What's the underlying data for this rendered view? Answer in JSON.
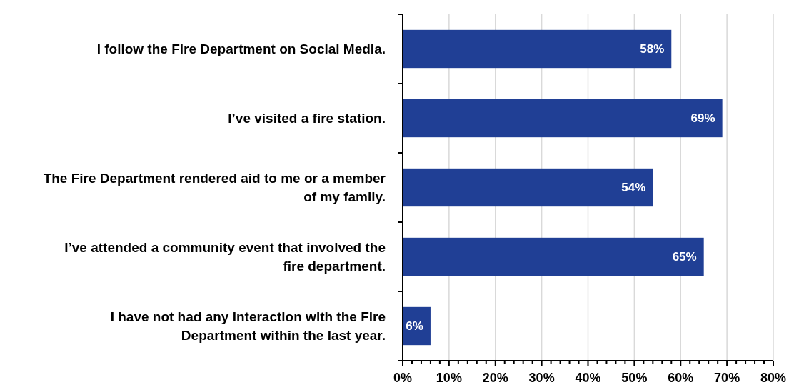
{
  "chart_data": {
    "type": "bar",
    "orientation": "horizontal",
    "categories": [
      "I follow the Fire Department on Social Media.",
      "I’ve visited a fire station.",
      "The Fire Department rendered aid to me or a member of my family.",
      "I’ve attended a community event that involved the fire department.",
      "I have not had any interaction with the Fire Department within the last year."
    ],
    "values": [
      58,
      69,
      54,
      65,
      6
    ],
    "value_labels": [
      "58%",
      "69%",
      "54%",
      "65%",
      "6%"
    ],
    "color": "#203f95",
    "xlim": [
      0,
      80
    ],
    "xticks": [
      {
        "value": 0,
        "label": "0%"
      },
      {
        "value": 2,
        "label": null
      },
      {
        "value": 4,
        "label": null
      },
      {
        "value": 6,
        "label": null
      },
      {
        "value": 8,
        "label": null
      },
      {
        "value": 10,
        "label": "10%"
      },
      {
        "value": 12,
        "label": null
      },
      {
        "value": 14,
        "label": null
      },
      {
        "value": 16,
        "label": null
      },
      {
        "value": 18,
        "label": null
      },
      {
        "value": 20,
        "label": "20%"
      },
      {
        "value": 22,
        "label": null
      },
      {
        "value": 24,
        "label": null
      },
      {
        "value": 26,
        "label": null
      },
      {
        "value": 28,
        "label": null
      },
      {
        "value": 30,
        "label": "30%"
      },
      {
        "value": 32,
        "label": null
      },
      {
        "value": 34,
        "label": null
      },
      {
        "value": 36,
        "label": null
      },
      {
        "value": 38,
        "label": null
      },
      {
        "value": 40,
        "label": "40%"
      },
      {
        "value": 42,
        "label": null
      },
      {
        "value": 44,
        "label": null
      },
      {
        "value": 46,
        "label": null
      },
      {
        "value": 48,
        "label": null
      },
      {
        "value": 50,
        "label": "50%"
      },
      {
        "value": 52,
        "label": null
      },
      {
        "value": 54,
        "label": null
      },
      {
        "value": 56,
        "label": null
      },
      {
        "value": 58,
        "label": null
      },
      {
        "value": 60,
        "label": "60%"
      },
      {
        "value": 62,
        "label": null
      },
      {
        "value": 64,
        "label": null
      },
      {
        "value": 66,
        "label": null
      },
      {
        "value": 68,
        "label": null
      },
      {
        "value": 70,
        "label": "70%"
      },
      {
        "value": 72,
        "label": null
      },
      {
        "value": 74,
        "label": null
      },
      {
        "value": 76,
        "label": null
      },
      {
        "value": 78,
        "label": null
      },
      {
        "value": 80,
        "label": "80%"
      }
    ],
    "grid": "x"
  }
}
